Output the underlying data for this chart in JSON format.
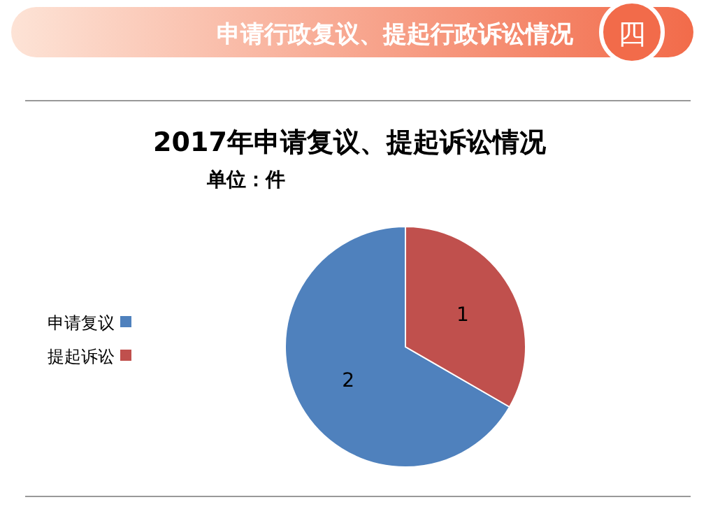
{
  "chart_data": {
    "type": "pie",
    "title": "2017年申请复议、提起诉讼情况",
    "subtitle": "单位：件",
    "categories": [
      "申请复议",
      "提起诉讼"
    ],
    "values": [
      2,
      1
    ],
    "colors": [
      "#4f81bd",
      "#c0504d"
    ],
    "data_labels": true,
    "legend": "left",
    "annotations": [
      "四",
      "申请行政复议、提起行政诉讼情况"
    ]
  }
}
